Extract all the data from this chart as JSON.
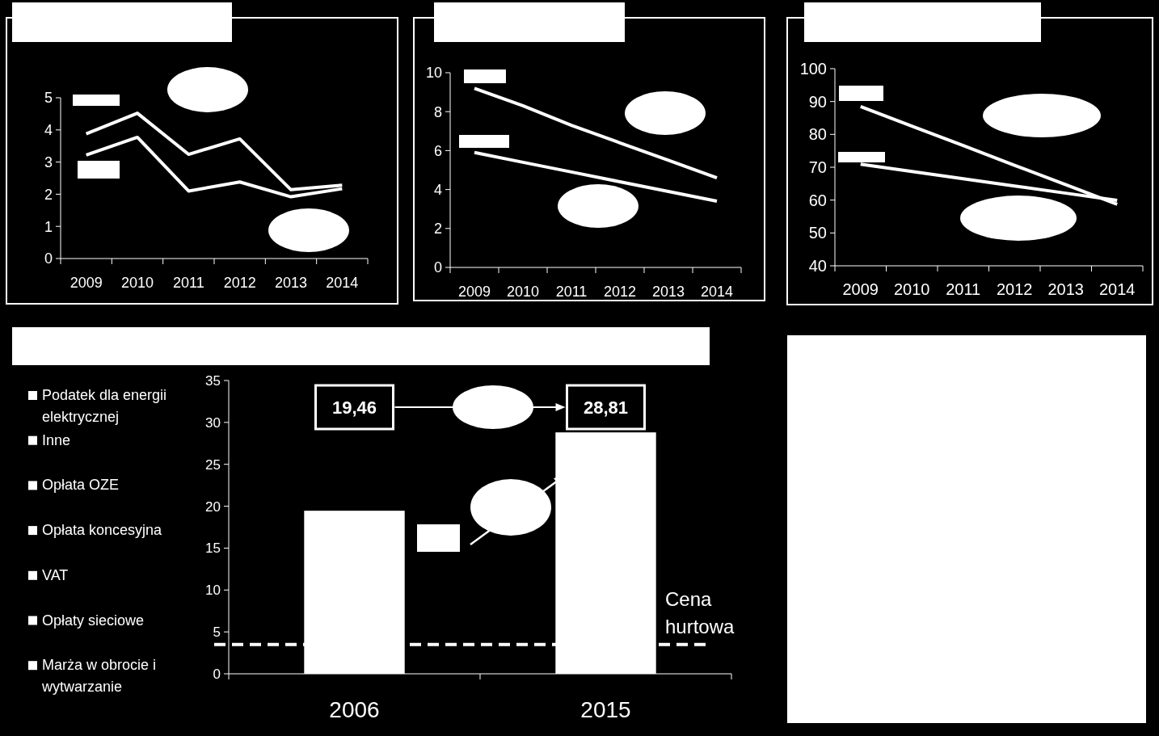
{
  "chart_data": [
    {
      "type": "line",
      "categories": [
        "2009",
        "2010",
        "2011",
        "2012",
        "2013",
        "2014"
      ],
      "ylim": [
        0,
        5
      ],
      "yticks": [
        0,
        1,
        2,
        3,
        4,
        5
      ],
      "grid": false,
      "marker": "none",
      "line_style": "solid",
      "series": [
        {
          "color": "#ffffff",
          "values": [
            3.88,
            4.52,
            3.24,
            3.72,
            2.14,
            2.28
          ]
        },
        {
          "color": "#ffffff",
          "values": [
            3.22,
            3.77,
            2.1,
            2.38,
            1.92,
            2.17
          ]
        }
      ]
    },
    {
      "type": "line",
      "categories": [
        "2009",
        "2010",
        "2011",
        "2012",
        "2013",
        "2014"
      ],
      "ylim": [
        0,
        10
      ],
      "yticks": [
        0,
        2,
        4,
        6,
        8,
        10
      ],
      "grid": false,
      "marker": "none",
      "line_style": "solid",
      "series": [
        {
          "color": "#ffffff",
          "values": [
            9.2,
            8.3,
            7.3,
            6.4,
            5.5,
            4.6
          ]
        },
        {
          "color": "#ffffff",
          "values": [
            5.9,
            5.4,
            4.9,
            4.4,
            3.9,
            3.4
          ]
        }
      ]
    },
    {
      "type": "line",
      "categories": [
        "2009",
        "2010",
        "2011",
        "2012",
        "2013",
        "2014"
      ],
      "ylim": [
        40,
        100
      ],
      "yticks": [
        40,
        50,
        60,
        70,
        80,
        90,
        100
      ],
      "grid": false,
      "marker": "none",
      "line_style": "solid",
      "series": [
        {
          "color": "#ffffff",
          "values": [
            88.5,
            82.5,
            76.6,
            70.6,
            64.7,
            58.7
          ]
        },
        {
          "color": "#ffffff",
          "values": [
            70.9,
            68.7,
            66.5,
            64.3,
            62.1,
            59.9
          ]
        }
      ]
    },
    {
      "type": "bar",
      "categories": [
        "2006",
        "2015"
      ],
      "ylim": [
        0,
        35
      ],
      "yticks": [
        0,
        5,
        10,
        15,
        20,
        25,
        30,
        35
      ],
      "grid": false,
      "series": [
        {
          "color": "#ffffff",
          "values": [
            19.46,
            28.81
          ]
        }
      ],
      "ref_lines": [
        {
          "axis": "y",
          "value": 3.5,
          "label": "Cena hurtowa",
          "color": "#ffffff",
          "line_style": "dashed"
        }
      ],
      "annotations": [
        "Podatek dla energii elektrycznej",
        "Inne",
        "Opłata OZE",
        "Opłata koncesyjna",
        "VAT",
        "Opłaty sieciowe",
        "Marża w obrocie i wytwarzanie",
        "19,46",
        "28,81"
      ]
    }
  ]
}
